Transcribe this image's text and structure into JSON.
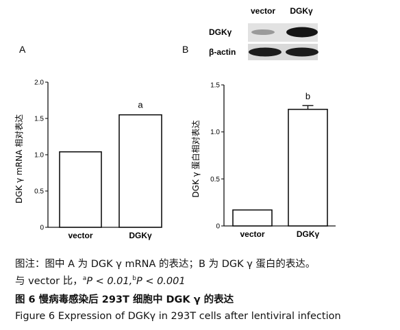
{
  "panel_a_label": "A",
  "panel_b_label": "B",
  "blot": {
    "lane_labels": [
      "vector",
      "DGKγ"
    ],
    "row_labels": [
      "DGKγ",
      "β-actin"
    ]
  },
  "caption": {
    "line1": "图注：图中 A 为 DGK γ  mRNA 的表达；B 为 DGK γ 蛋白的表达。",
    "line2_prefix": "与 vector 比，",
    "sig_a_letter": "a",
    "sig_a_text": "P < 0.01,",
    "sig_b_letter": "b",
    "sig_b_text": "P < 0.001",
    "line3": "图 6   慢病毒感染后 293T 细胞中 DGK γ 的表达",
    "line4": "Figure 6    Expression of DGKγ in 293T cells after lentiviral infection"
  },
  "chart_data": [
    {
      "type": "bar",
      "categories": [
        "vector",
        "DGKγ"
      ],
      "values": [
        1.04,
        1.55
      ],
      "errors": [
        0,
        0
      ],
      "ylabel": "DGK γ  mRNA 相对表达",
      "ylim": [
        0,
        2.0
      ],
      "yticks": [
        0,
        0.5,
        1.0,
        1.5,
        2.0
      ],
      "ytick_labels": [
        "0",
        "0.5",
        "1.0",
        "1.5",
        "2.0"
      ],
      "annotations": [
        "",
        "a"
      ]
    },
    {
      "type": "bar",
      "categories": [
        "vector",
        "DGKγ"
      ],
      "values": [
        0.17,
        1.24
      ],
      "errors": [
        0,
        0.04
      ],
      "ylabel": "DGK γ 蛋白相对表达",
      "ylim": [
        0,
        1.5
      ],
      "yticks": [
        0,
        0.5,
        1.0,
        1.5
      ],
      "ytick_labels": [
        "0",
        "0.5",
        "1.0",
        "1.5"
      ],
      "annotations": [
        "",
        "b"
      ]
    }
  ]
}
